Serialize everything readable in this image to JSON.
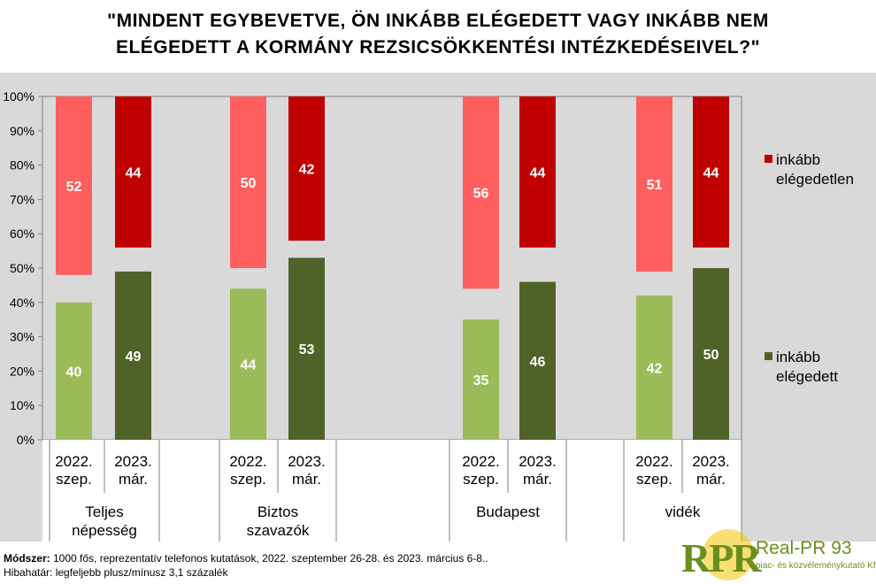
{
  "title": {
    "line1": "\"MINDENT EGYBEVETVE, ÖN INKÁBB ELÉGEDETT VAGY INKÁBB NEM",
    "line2": "ELÉGEDETT A KORMÁNY REZSICSÖKKENTÉSI INTÉZKEDÉSEIVEL?\""
  },
  "chart_data": {
    "type": "bar",
    "stacking": "stacked-100",
    "groups": [
      "Teljes népesség",
      "Biztos szavazók",
      "Budapest",
      "vidék"
    ],
    "group_label_lines": [
      [
        "Teljes",
        "népesség"
      ],
      [
        "Biztos",
        "szavazók"
      ],
      [
        "Budapest"
      ],
      [
        "vidék"
      ]
    ],
    "periods": [
      [
        "2022.",
        "szep."
      ],
      [
        "2023.",
        "már."
      ]
    ],
    "series": [
      {
        "name": "inkább elégedett",
        "legend_lines": [
          "inkább",
          "elégedett"
        ],
        "values": [
          [
            40,
            49
          ],
          [
            44,
            53
          ],
          [
            35,
            46
          ],
          [
            42,
            50
          ]
        ],
        "colors": [
          "#9bbb59",
          "#4f6228"
        ]
      },
      {
        "name": "inkább elégedetlen",
        "legend_lines": [
          "inkább",
          "elégedetlen"
        ],
        "values": [
          [
            52,
            44
          ],
          [
            50,
            42
          ],
          [
            56,
            44
          ],
          [
            51,
            44
          ]
        ],
        "colors": [
          "#ff5f5f",
          "#c00000"
        ]
      }
    ],
    "y_ticks": [
      "0%",
      "10%",
      "20%",
      "30%",
      "40%",
      "50%",
      "60%",
      "70%",
      "80%",
      "90%",
      "100%"
    ],
    "ylim": [
      0,
      100
    ],
    "legend_colors": [
      "#c00000",
      "#4f6228"
    ]
  },
  "footer": {
    "method_label": "Módszer:",
    "method_text": " 1000 fős, reprezentatív telefonos kutatások, 2022. szeptember 26-28. és 2023. március 6-8..",
    "error_text": "Hibahatár: legfeljebb plusz/mínusz 3,1 százalék"
  },
  "logo": {
    "letters": "RPR",
    "name": "Real-PR 93",
    "subtitle": "piac- és közvéleménykutató Kft."
  }
}
